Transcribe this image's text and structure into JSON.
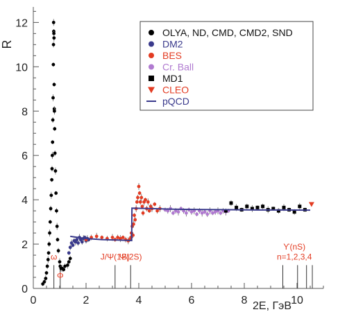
{
  "chart_data": {
    "type": "scatter",
    "title": "",
    "xlabel": "2E, ГэВ",
    "ylabel": "R",
    "xlim": [
      0,
      11
    ],
    "ylim": [
      0,
      12.7
    ],
    "xticks": [
      0,
      2,
      4,
      6,
      8,
      10
    ],
    "yticks": [
      0,
      2,
      4,
      6,
      8,
      10,
      12
    ],
    "grid": false,
    "legend_position": "top-right",
    "series": [
      {
        "name": "OLYA, ND, CMD, CMD2, SND",
        "marker": "circle",
        "color": "#000000",
        "x": [
          0.36,
          0.42,
          0.47,
          0.5,
          0.53,
          0.56,
          0.58,
          0.6,
          0.62,
          0.64,
          0.66,
          0.68,
          0.7,
          0.71,
          0.72,
          0.73,
          0.74,
          0.75,
          0.76,
          0.765,
          0.77,
          0.775,
          0.78,
          0.785,
          0.79,
          0.795,
          0.8,
          0.81,
          0.82,
          0.84,
          0.86,
          0.88,
          0.9,
          0.92,
          0.95,
          1.0,
          1.02,
          1.05,
          1.1,
          1.15,
          1.2,
          1.3,
          1.35,
          1.4
        ],
        "y": [
          0.2,
          0.3,
          0.45,
          0.7,
          1.0,
          1.3,
          1.6,
          2.0,
          2.5,
          3.0,
          3.6,
          4.2,
          4.9,
          5.4,
          6.0,
          6.6,
          7.6,
          8.6,
          10.1,
          11.0,
          12.0,
          11.6,
          11.5,
          11.3,
          9.2,
          8.1,
          8.0,
          7.2,
          6.1,
          5.3,
          4.3,
          3.5,
          2.8,
          2.2,
          1.7,
          1.2,
          1.0,
          0.9,
          0.9,
          0.85,
          1.0,
          1.05,
          1.2,
          1.35
        ]
      },
      {
        "name": "DM2",
        "marker": "circle",
        "color": "#3a3a8c",
        "x": [
          1.35,
          1.4,
          1.45,
          1.5,
          1.55,
          1.6,
          1.65,
          1.7,
          1.75,
          1.8,
          1.85,
          1.9,
          1.95,
          2.0,
          2.05,
          2.1
        ],
        "y": [
          1.6,
          1.85,
          2.05,
          1.95,
          2.15,
          2.1,
          2.2,
          2.05,
          2.3,
          2.2,
          2.1,
          2.25,
          2.3,
          2.15,
          2.25,
          2.2
        ]
      },
      {
        "name": "BES",
        "marker": "circle",
        "color": "#e33b22",
        "x": [
          2.0,
          2.2,
          2.4,
          2.6,
          2.8,
          3.0,
          3.1,
          3.2,
          3.3,
          3.4,
          3.5,
          3.6,
          3.65,
          3.7,
          3.72,
          3.75,
          3.78,
          3.8,
          3.83,
          3.86,
          3.9,
          3.93,
          3.96,
          4.0,
          4.03,
          4.06,
          4.1,
          4.13,
          4.16,
          4.2,
          4.25,
          4.3,
          4.35,
          4.4,
          4.45,
          4.5,
          4.6,
          4.7,
          4.8
        ],
        "y": [
          2.2,
          2.3,
          2.35,
          2.3,
          2.25,
          2.3,
          2.2,
          2.3,
          2.25,
          2.3,
          2.2,
          2.15,
          2.2,
          2.3,
          2.5,
          2.8,
          2.4,
          2.9,
          3.3,
          3.1,
          3.6,
          3.9,
          4.1,
          4.6,
          4.3,
          3.9,
          4.1,
          3.7,
          3.4,
          3.9,
          4.0,
          3.6,
          3.9,
          3.5,
          3.7,
          3.6,
          3.8,
          3.5,
          3.6
        ]
      },
      {
        "name": "Cr. Ball",
        "marker": "circle",
        "color": "#b07ad0",
        "x": [
          5.0,
          5.1,
          5.2,
          5.3,
          5.4,
          5.5,
          5.6,
          5.7,
          5.8,
          5.9,
          6.0,
          6.1,
          6.2,
          6.3,
          6.4,
          6.5,
          6.6,
          6.7,
          6.8,
          6.9,
          7.0,
          7.1,
          7.2,
          7.3,
          7.4
        ],
        "y": [
          3.55,
          3.5,
          3.6,
          3.4,
          3.5,
          3.45,
          3.6,
          3.5,
          3.4,
          3.55,
          3.45,
          3.5,
          3.35,
          3.5,
          3.4,
          3.45,
          3.35,
          3.5,
          3.4,
          3.45,
          3.5,
          3.4,
          3.5,
          3.45,
          3.5
        ]
      },
      {
        "name": "MD1",
        "marker": "square",
        "color": "#000000",
        "x": [
          7.3,
          7.5,
          7.7,
          7.9,
          8.1,
          8.3,
          8.5,
          8.7,
          8.9,
          9.1,
          9.3,
          9.5,
          9.7,
          9.9,
          10.1,
          10.3
        ],
        "y": [
          3.5,
          3.85,
          3.65,
          3.55,
          3.7,
          3.6,
          3.65,
          3.7,
          3.55,
          3.6,
          3.5,
          3.65,
          3.55,
          3.45,
          3.7,
          3.55
        ]
      },
      {
        "name": "CLEO",
        "marker": "triangle-down",
        "color": "#e33b22",
        "x": [
          10.55
        ],
        "y": [
          3.8
        ]
      },
      {
        "name": "pQCD",
        "marker": "line",
        "color": "#3a3a8c",
        "x": [
          1.4,
          2.0,
          2.6,
          3.2,
          3.73,
          3.74,
          4.5,
          5.5,
          6.5,
          7.5,
          8.5,
          9.5,
          10.5
        ],
        "y": [
          2.35,
          2.25,
          2.2,
          2.18,
          2.16,
          3.62,
          3.6,
          3.57,
          3.56,
          3.55,
          3.54,
          3.54,
          3.53
        ]
      }
    ],
    "annotations": [
      {
        "text": "ω",
        "x": 0.78,
        "color": "#e33b22",
        "label_y": 1.3
      },
      {
        "text": "Φ",
        "x": 1.02,
        "color": "#e33b22",
        "label_y": 0.45
      },
      {
        "text": "J/Ψ(1S)",
        "x": 3.1,
        "color": "#e33b22",
        "label_y": 1.3
      },
      {
        "text": "Ψ(2S)",
        "x": 3.69,
        "color": "#e33b22",
        "label_y": 1.3
      },
      {
        "text": "ϒ(nS)",
        "x": 9.9,
        "color": "#e33b22",
        "label_y": 1.75
      },
      {
        "text": "n=1,2,3,4",
        "x": 9.9,
        "color": "#e33b22",
        "label_y": 1.3
      }
    ],
    "resonance_lines_x": [
      0.78,
      1.02,
      3.1,
      3.69,
      9.46,
      10.02,
      10.36,
      10.58
    ]
  }
}
